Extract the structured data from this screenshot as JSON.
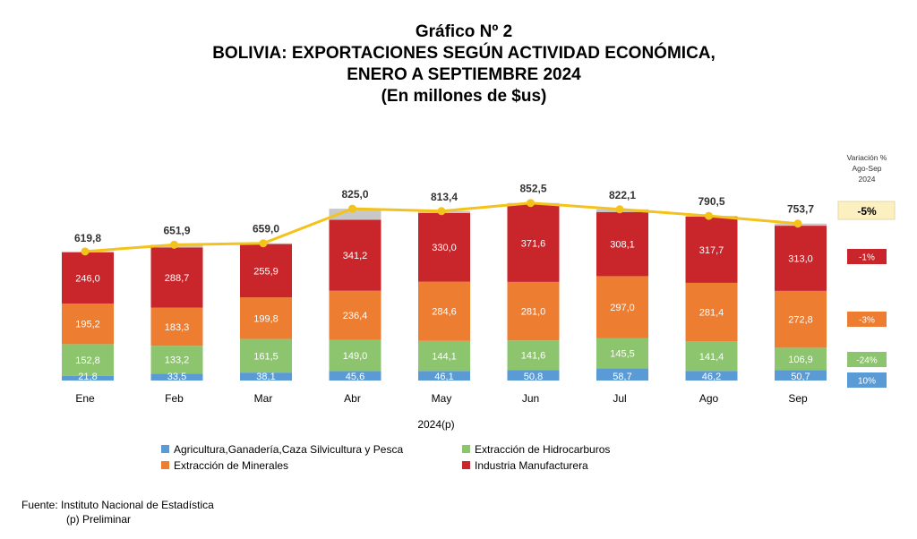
{
  "header": {
    "chart_number": "Gráfico Nº 2",
    "title_line1": "BOLIVIA: EXPORTACIONES SEGÚN ACTIVIDAD ECONÓMICA,",
    "title_line2": "ENERO A SEPTIEMBRE 2024",
    "subtitle": "(En millones de $us)"
  },
  "footer": {
    "source": "Fuente: Instituto Nacional de Estadística",
    "note": "(p) Preliminar"
  },
  "colors": {
    "agricultura": "#5B9BD5",
    "hidrocarburos": "#8DC56F",
    "minerales": "#ED7D31",
    "manufactura": "#C9262B",
    "otros": "#C8C8C8",
    "total_line": "#F3C31C",
    "variation_total_bg": "#FCEFC0"
  },
  "chart_data": {
    "type": "bar",
    "stacked": true,
    "categories": [
      "Ene",
      "Feb",
      "Mar",
      "Abr",
      "May",
      "Jun",
      "Jul",
      "Ago",
      "Sep"
    ],
    "xlabel": "2024(p)",
    "ylabel": "",
    "series": [
      {
        "name": "Agricultura,Ganadería,Caza Silvicultura y Pesca",
        "key": "agricultura",
        "values": [
          21.8,
          33.5,
          38.1,
          45.6,
          46.1,
          50.8,
          58.7,
          46.2,
          50.7
        ],
        "labels": [
          "21,8",
          "33,5",
          "38,1",
          "45,6",
          "46,1",
          "50,8",
          "58,7",
          "46,2",
          "50,7"
        ]
      },
      {
        "name": "Extracción de Hidrocarburos",
        "key": "hidrocarburos",
        "values": [
          152.8,
          133.2,
          161.5,
          149.0,
          144.1,
          141.6,
          145.5,
          141.4,
          106.9
        ],
        "labels": [
          "152,8",
          "133,2",
          "161,5",
          "149,0",
          "144,1",
          "141,6",
          "145,5",
          "141,4",
          "106,9"
        ]
      },
      {
        "name": "Extracción de Minerales",
        "key": "minerales",
        "values": [
          195.2,
          183.3,
          199.8,
          236.4,
          284.6,
          281.0,
          297.0,
          281.4,
          272.8
        ],
        "labels": [
          "195,2",
          "183,3",
          "199,8",
          "236,4",
          "284,6",
          "281,0",
          "297,0",
          "281,4",
          "272,8"
        ]
      },
      {
        "name": "Industria Manufacturera",
        "key": "manufactura",
        "values": [
          246.0,
          288.7,
          255.9,
          341.2,
          330.0,
          371.6,
          308.1,
          317.7,
          313.0
        ],
        "labels": [
          "246,0",
          "288,7",
          "255,9",
          "341,2",
          "330,0",
          "371,6",
          "308,1",
          "317,7",
          "313,0"
        ]
      }
    ],
    "totals": {
      "values": [
        619.8,
        651.9,
        659.0,
        825.0,
        813.4,
        852.5,
        822.1,
        790.5,
        753.7
      ],
      "labels": [
        "619,8",
        "651,9",
        "659,0",
        "825,0",
        "813,4",
        "852,5",
        "822,1",
        "790,5",
        "753,7"
      ]
    },
    "ylim": [
      0,
      960
    ],
    "grid": false,
    "legend_position": "bottom",
    "variation": {
      "title_line1": "Variación %",
      "title_line2": "Ago-Sep",
      "title_line3": "2024",
      "total": "-5%",
      "manufactura": "-1%",
      "minerales": "-3%",
      "hidrocarburos": "-24%",
      "agricultura": "10%"
    }
  }
}
